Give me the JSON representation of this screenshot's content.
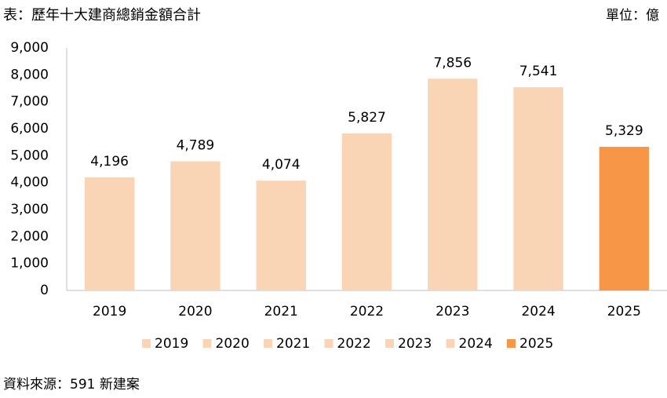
{
  "chart_data": {
    "type": "bar",
    "title": "表：歷年十大建商總銷金額合計",
    "unit": "單位：億",
    "source": "資料來源：591 新建案",
    "categories": [
      "2019",
      "2020",
      "2021",
      "2022",
      "2023",
      "2024",
      "2025"
    ],
    "values": [
      4196,
      4789,
      4074,
      5827,
      7856,
      7541,
      5329
    ],
    "value_labels": [
      "4,196",
      "4,789",
      "4,074",
      "5,827",
      "7,856",
      "7,541",
      "5,329"
    ],
    "colors": [
      "#f9d5b5",
      "#f9d5b5",
      "#f9d5b5",
      "#f9d5b5",
      "#f9d5b5",
      "#f9d5b5",
      "#f79646"
    ],
    "ylim": [
      0,
      9000
    ],
    "yticks": [
      0,
      {
        "value": 1000,
        "label": "1,000"
      },
      {
        "value": 2000,
        "label": "2,000"
      },
      {
        "value": 3000,
        "label": "3,000"
      },
      {
        "value": 4000,
        "label": "4,000"
      },
      {
        "value": 5000,
        "label": "5,000"
      },
      {
        "value": 6000,
        "label": "6,000"
      },
      {
        "value": 7000,
        "label": "7,000"
      },
      {
        "value": 8000,
        "label": "8,000"
      },
      {
        "value": 9000,
        "label": "9,000"
      }
    ],
    "grid": false
  }
}
